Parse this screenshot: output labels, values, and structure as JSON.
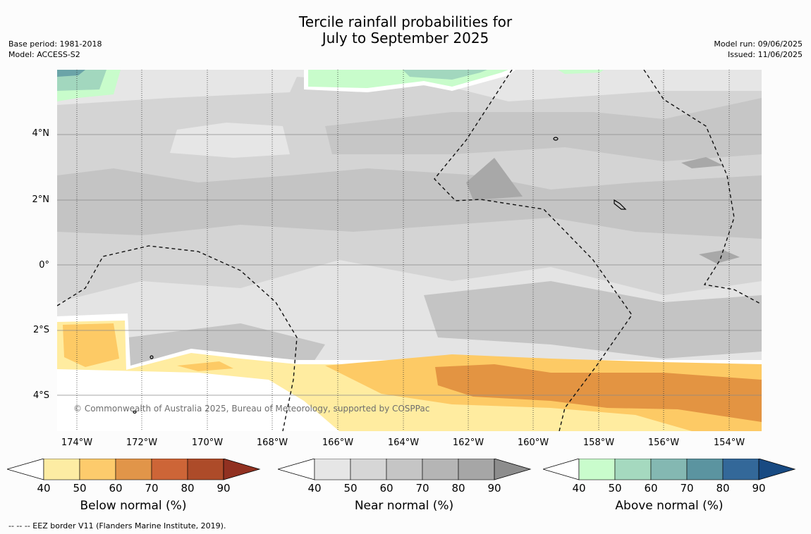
{
  "title": {
    "line1": "Tercile rainfall probabilities for",
    "line2": "July to September 2025"
  },
  "meta": {
    "base_period": "Base period: 1981-2018",
    "model": "Model: ACCESS-S2",
    "model_run": "Model run: 09/06/2025",
    "issued": "Issued: 11/06/2025"
  },
  "map": {
    "lat_labels": [
      "4°N",
      "2°N",
      "0°",
      "2°S",
      "4°S"
    ],
    "lon_labels": [
      "174°W",
      "172°W",
      "170°W",
      "168°W",
      "166°W",
      "164°W",
      "162°W",
      "160°W",
      "158°W",
      "156°W",
      "154°W"
    ],
    "copyright": "© Commonwealth of Australia 2025, Bureau of Meteorology, supported by COSPPac",
    "colors": {
      "near_light": "#e6e6e6",
      "near_mid": "#d3d3d3",
      "near_dark": "#c4c4c4",
      "near_darker": "#a8a8a8",
      "below_1": "#ffeca0",
      "below_2": "#fdca65",
      "below_3": "#e39442",
      "above_1": "#c8fccb",
      "above_2": "#a2d7be",
      "above_3": "#6ba4a8"
    }
  },
  "colorbars": [
    {
      "label": "Below normal (%)",
      "ticks": [
        "40",
        "50",
        "60",
        "70",
        "80",
        "90"
      ],
      "colors": [
        "#ffffff",
        "#fdeca3",
        "#fdcb6c",
        "#e19549",
        "#cd6537",
        "#ad4b29",
        "#913121"
      ]
    },
    {
      "label": "Near normal (%)",
      "ticks": [
        "40",
        "50",
        "60",
        "70",
        "80",
        "90"
      ],
      "colors": [
        "#ffffff",
        "#e6e6e6",
        "#d6d6d6",
        "#c5c5c5",
        "#b5b5b5",
        "#a6a6a6",
        "#8d8d8d"
      ]
    },
    {
      "label": "Above normal (%)",
      "ticks": [
        "40",
        "50",
        "60",
        "70",
        "80",
        "90"
      ],
      "colors": [
        "#ffffff",
        "#c9fccc",
        "#a5d9bf",
        "#84b8b2",
        "#5b94a0",
        "#336899",
        "#184a82"
      ]
    }
  ],
  "footnote": "--  --  -- EEZ border V11 (Flanders Marine Institute, 2019)."
}
